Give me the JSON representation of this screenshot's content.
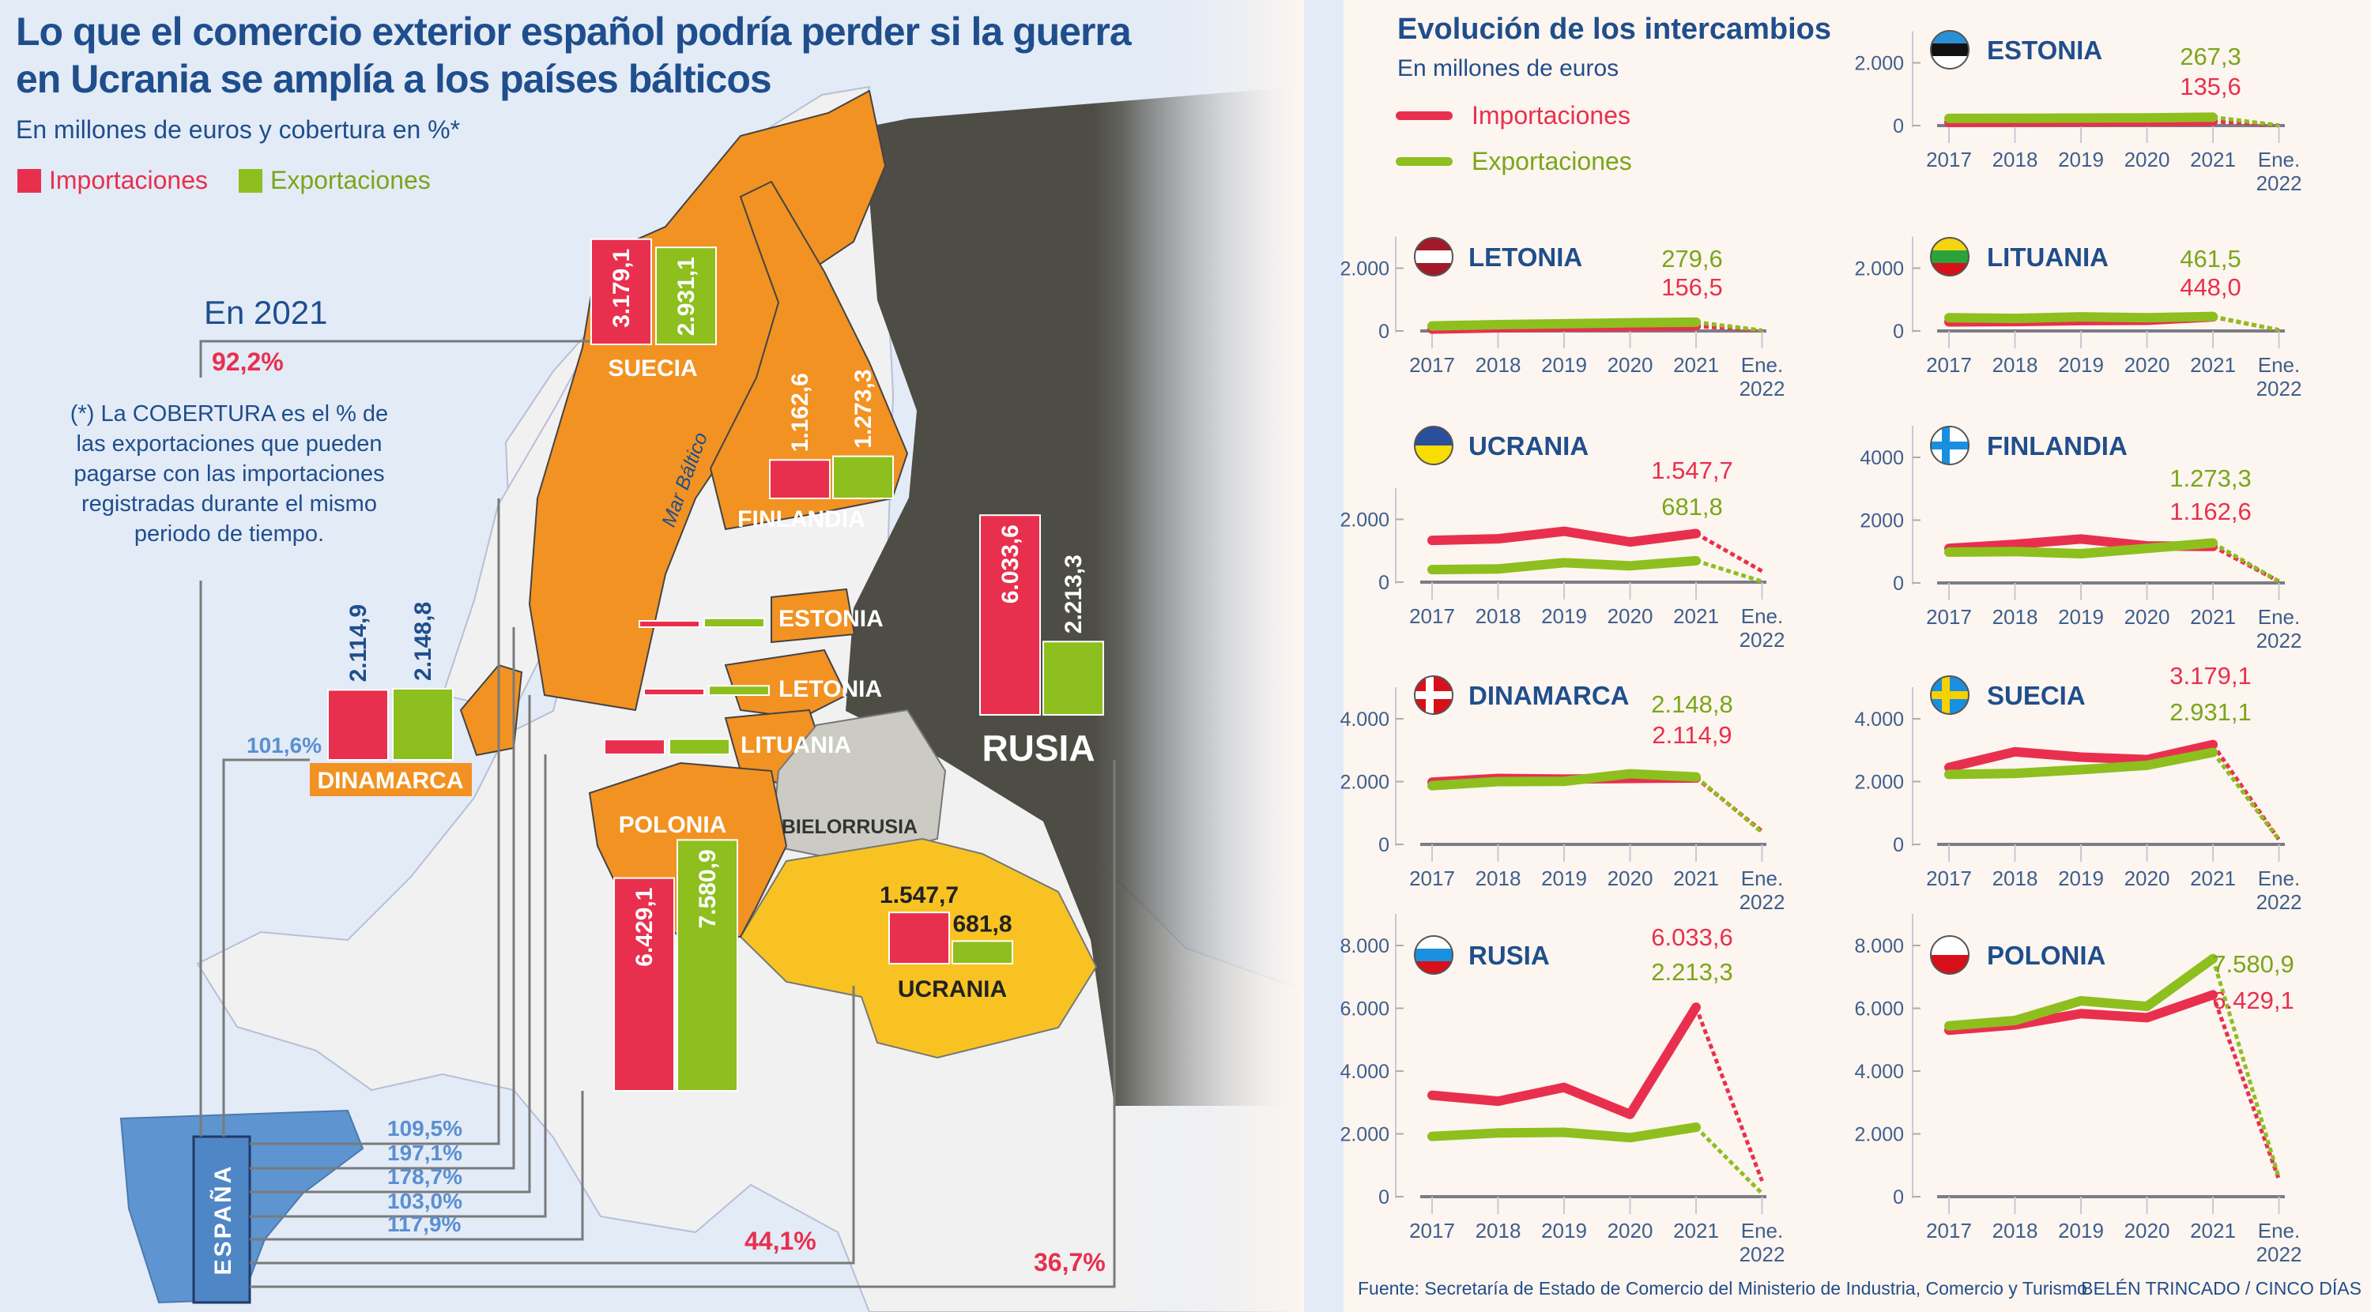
{
  "header": {
    "title_line1": "Lo que el comercio exterior español podría perder si la guerra",
    "title_line2": "en Ucrania se amplía a los países bálticos",
    "subtitle": "En millones de euros y cobertura en %*",
    "legend": {
      "imports": "Importaciones",
      "exports": "Exportaciones"
    }
  },
  "colors": {
    "imports": "#e8304e",
    "exports": "#8dbf1e",
    "title": "#1f4e8c",
    "orange": "#f29222",
    "russia": "#4d4d45",
    "ukraine": "#f8c322",
    "belarus": "#cbcbc3",
    "spain": "#5e94d0"
  },
  "map": {
    "year_label": "En 2021",
    "note": "(*) La COBERTURA es el % de las exportaciones que pueden pagarse con las importaciones registradas durante el mismo periodo de tiempo.",
    "sea_label": "Mar Báltico",
    "spain_label": "ESPAÑA",
    "belarus_label": "BIELORRUSIA",
    "countries": [
      {
        "name": "SUECIA",
        "imports": 3179.1,
        "exports": 2931.1,
        "imports_label": "3.179,1",
        "exports_label": "2.931,1",
        "coverage": "92,2%"
      },
      {
        "name": "FINLANDIA",
        "imports": 1162.6,
        "exports": 1273.3,
        "imports_label": "1.162,6",
        "exports_label": "1.273,3",
        "coverage": "109,5%"
      },
      {
        "name": "ESTONIA",
        "imports": 135.6,
        "exports": 267.3,
        "coverage": "197,1%"
      },
      {
        "name": "LETONIA",
        "imports": 156.5,
        "exports": 279.6,
        "coverage": "178,7%"
      },
      {
        "name": "LITUANIA",
        "imports": 448.0,
        "exports": 461.5,
        "coverage": "103,0%"
      },
      {
        "name": "RUSIA",
        "imports": 6033.6,
        "exports": 2213.3,
        "imports_label": "6.033,6",
        "exports_label": "2.213,3",
        "coverage": "36,7%"
      },
      {
        "name": "DINAMARCA",
        "imports": 2114.9,
        "exports": 2148.8,
        "imports_label": "2.114,9",
        "exports_label": "2.148,8",
        "coverage": "101,6%"
      },
      {
        "name": "POLONIA",
        "imports": 6429.1,
        "exports": 7580.9,
        "imports_label": "6.429,1",
        "exports_label": "7.580,9",
        "coverage": "117,9%"
      },
      {
        "name": "UCRANIA",
        "imports": 1547.7,
        "exports": 681.8,
        "imports_label": "1.547,7",
        "exports_label": "681,8",
        "coverage": "44,1%"
      }
    ]
  },
  "panel": {
    "title": "Evolución de los intercambios",
    "subtitle": "En millones de euros",
    "legend": {
      "imports": "Importaciones",
      "exports": "Exportaciones"
    }
  },
  "footer": {
    "source": "Fuente: Secretaría de Estado de Comercio del Ministerio de Industria, Comercio y Turismo",
    "credit": "BELÉN TRINCADO / CINCO DÍAS"
  },
  "chart_data": [
    {
      "type": "line",
      "title": "ESTONIA",
      "flag": "estonia-flag",
      "categories": [
        "2017",
        "2018",
        "2019",
        "2020",
        "2021",
        "Ene. 2022"
      ],
      "yticks": [
        0,
        2000
      ],
      "ytick_labels": [
        "0",
        "2.000"
      ],
      "series": [
        {
          "name": "Importaciones",
          "values": [
            100,
            110,
            120,
            125,
            135.6,
            5
          ]
        },
        {
          "name": "Exportaciones",
          "values": [
            230,
            232,
            240,
            245,
            267.3,
            10
          ]
        }
      ],
      "data_labels": {
        "imports": "135,6",
        "exports": "267,3"
      }
    },
    {
      "type": "line",
      "title": "LETONIA",
      "flag": "latvia-flag",
      "categories": [
        "2017",
        "2018",
        "2019",
        "2020",
        "2021",
        "Ene. 2022"
      ],
      "yticks": [
        0,
        2000
      ],
      "ytick_labels": [
        "0",
        "2.000"
      ],
      "series": [
        {
          "name": "Importaciones",
          "values": [
            60,
            100,
            130,
            140,
            156.5,
            10
          ]
        },
        {
          "name": "Exportaciones",
          "values": [
            160,
            200,
            230,
            260,
            279.6,
            20
          ]
        }
      ],
      "data_labels": {
        "imports": "156,5",
        "exports": "279,6"
      }
    },
    {
      "type": "line",
      "title": "LITUANIA",
      "flag": "lithuania-flag",
      "categories": [
        "2017",
        "2018",
        "2019",
        "2020",
        "2021",
        "Ene. 2022"
      ],
      "yticks": [
        0,
        2000
      ],
      "ytick_labels": [
        "0",
        "2.000"
      ],
      "series": [
        {
          "name": "Importaciones",
          "values": [
            290,
            300,
            330,
            340,
            448.0,
            30
          ]
        },
        {
          "name": "Exportaciones",
          "values": [
            420,
            400,
            450,
            420,
            461.5,
            30
          ]
        }
      ],
      "data_labels": {
        "imports": "448,0",
        "exports": "461,5"
      }
    },
    {
      "type": "line",
      "title": "UCRANIA",
      "flag": "ukraine-flag",
      "categories": [
        "2017",
        "2018",
        "2019",
        "2020",
        "2021",
        "Ene. 2022"
      ],
      "yticks": [
        0,
        2000
      ],
      "ytick_labels": [
        "0",
        "2.000"
      ],
      "series": [
        {
          "name": "Importaciones",
          "values": [
            1330,
            1380,
            1620,
            1280,
            1547.7,
            350
          ]
        },
        {
          "name": "Exportaciones",
          "values": [
            400,
            420,
            620,
            520,
            681.8,
            20
          ]
        }
      ],
      "data_labels": {
        "imports": "1.547,7",
        "exports": "681,8"
      }
    },
    {
      "type": "line",
      "title": "FINLANDIA",
      "flag": "finland-flag",
      "categories": [
        "2017",
        "2018",
        "2019",
        "2020",
        "2021",
        "Ene. 2022"
      ],
      "yticks": [
        0,
        2000,
        4000
      ],
      "ytick_labels": [
        "0",
        "2000",
        "4000"
      ],
      "series": [
        {
          "name": "Importaciones",
          "values": [
            1100,
            1230,
            1400,
            1180,
            1162.6,
            50
          ]
        },
        {
          "name": "Exportaciones",
          "values": [
            980,
            1000,
            930,
            1100,
            1273.3,
            50
          ]
        }
      ],
      "data_labels": {
        "imports": "1.162,6",
        "exports": "1.273,3"
      }
    },
    {
      "type": "line",
      "title": "DINAMARCA",
      "flag": "denmark-flag",
      "categories": [
        "2017",
        "2018",
        "2019",
        "2020",
        "2021",
        "Ene. 2022"
      ],
      "yticks": [
        0,
        2000,
        4000
      ],
      "ytick_labels": [
        "0",
        "2.000",
        "4.000"
      ],
      "series": [
        {
          "name": "Importaciones",
          "values": [
            1980,
            2100,
            2080,
            2100,
            2114.9,
            420
          ]
        },
        {
          "name": "Exportaciones",
          "values": [
            1870,
            2000,
            2010,
            2250,
            2148.8,
            380
          ]
        }
      ],
      "data_labels": {
        "imports": "2.114,9",
        "exports": "2.148,8"
      }
    },
    {
      "type": "line",
      "title": "SUECIA",
      "flag": "sweden-flag",
      "categories": [
        "2017",
        "2018",
        "2019",
        "2020",
        "2021",
        "Ene. 2022"
      ],
      "yticks": [
        0,
        2000,
        4000
      ],
      "ytick_labels": [
        "0",
        "2.000",
        "4.000"
      ],
      "series": [
        {
          "name": "Importaciones",
          "values": [
            2450,
            2950,
            2780,
            2700,
            3179.1,
            150
          ]
        },
        {
          "name": "Exportaciones",
          "values": [
            2230,
            2260,
            2380,
            2520,
            2931.1,
            150
          ]
        }
      ],
      "data_labels": {
        "imports": "3.179,1",
        "exports": "2.931,1"
      }
    },
    {
      "type": "line",
      "title": "RUSIA",
      "flag": "russia-flag",
      "categories": [
        "2017",
        "2018",
        "2019",
        "2020",
        "2021",
        "Ene. 2022"
      ],
      "yticks": [
        0,
        2000,
        4000,
        6000,
        8000
      ],
      "ytick_labels": [
        "0",
        "2.000",
        "4.000",
        "6.000",
        "8.000"
      ],
      "series": [
        {
          "name": "Importaciones",
          "values": [
            3230,
            3040,
            3480,
            2620,
            6033.6,
            500
          ]
        },
        {
          "name": "Exportaciones",
          "values": [
            1920,
            2030,
            2050,
            1880,
            2213.3,
            100
          ]
        }
      ],
      "data_labels": {
        "imports": "6.033,6",
        "exports": "2.213,3"
      }
    },
    {
      "type": "line",
      "title": "POLONIA",
      "flag": "poland-flag",
      "categories": [
        "2017",
        "2018",
        "2019",
        "2020",
        "2021",
        "Ene. 2022"
      ],
      "yticks": [
        0,
        2000,
        4000,
        6000,
        8000
      ],
      "ytick_labels": [
        "0",
        "2.000",
        "4.000",
        "6.000",
        "8.000"
      ],
      "series": [
        {
          "name": "Importaciones",
          "values": [
            5300,
            5470,
            5830,
            5700,
            6429.1,
            550
          ]
        },
        {
          "name": "Exportaciones",
          "values": [
            5440,
            5610,
            6240,
            6060,
            7580.9,
            600
          ]
        }
      ],
      "data_labels": {
        "imports": "6.429,1",
        "exports": "7.580,9"
      }
    }
  ]
}
